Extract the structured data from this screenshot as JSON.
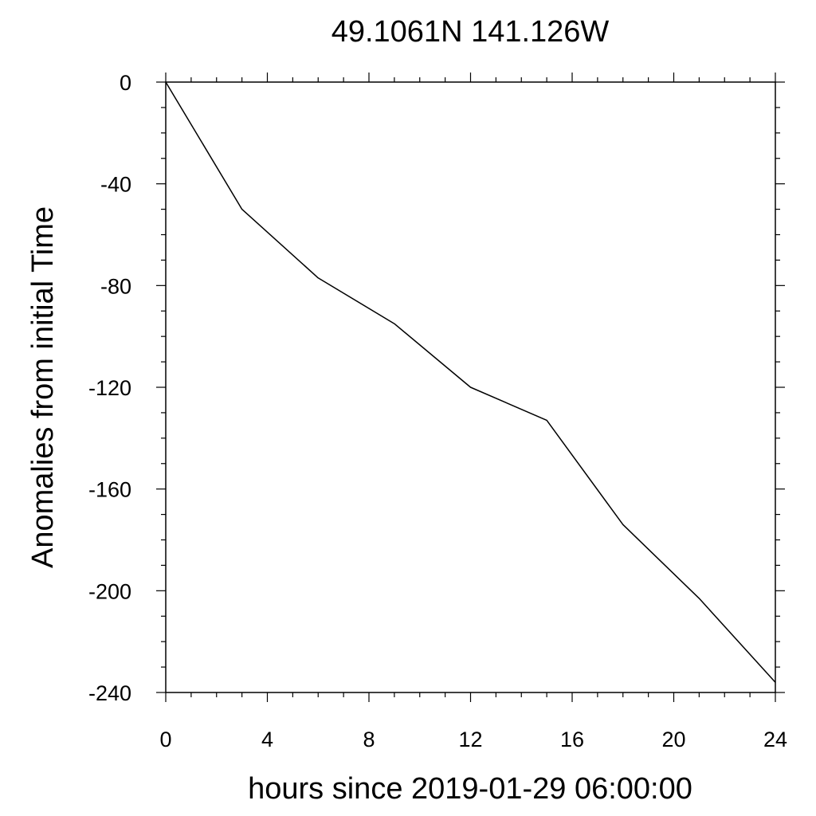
{
  "chart_data": {
    "type": "line",
    "title": "49.1061N  141.126W",
    "xlabel": "hours since 2019-01-29 06:00:00",
    "ylabel": "Anomalies from initial Time",
    "xlim": [
      0,
      24
    ],
    "ylim": [
      -240,
      0
    ],
    "xticks": [
      0,
      4,
      8,
      12,
      16,
      20,
      24
    ],
    "yticks": [
      0,
      -40,
      -80,
      -120,
      -160,
      -200,
      -240
    ],
    "grid": false,
    "series": [
      {
        "color": "#000000",
        "x": [
          0,
          3,
          6,
          9,
          12,
          15,
          18,
          21,
          24
        ],
        "y": [
          0,
          -50,
          -77,
          -95,
          -120,
          -133,
          -174,
          -203,
          -236
        ]
      }
    ]
  }
}
